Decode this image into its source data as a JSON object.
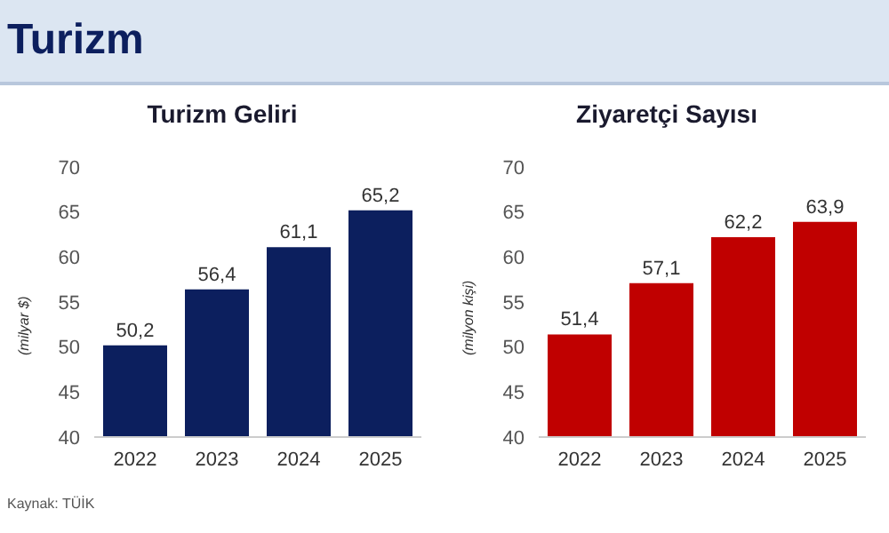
{
  "chart_data": [
    {
      "type": "bar",
      "title": "Turizm Geliri",
      "ylabel": "(milyar $)",
      "categories": [
        "2022",
        "2023",
        "2024",
        "2025"
      ],
      "values": [
        50.2,
        56.4,
        61.1,
        65.2
      ],
      "value_labels": [
        "50,2",
        "56,4",
        "61,1",
        "65,2"
      ],
      "color": "#0c1f5e",
      "ylim": [
        40,
        70
      ],
      "yticks": [
        40,
        45,
        50,
        55,
        60,
        65,
        70
      ],
      "grid": false,
      "annotations": [
        "Turizm",
        "Kaynak: TÜİK"
      ]
    },
    {
      "type": "bar",
      "title": "Ziyaretçi Sayısı",
      "ylabel": "(milyon kişi)",
      "categories": [
        "2022",
        "2023",
        "2024",
        "2025"
      ],
      "values": [
        51.4,
        57.1,
        62.2,
        63.9
      ],
      "value_labels": [
        "51,4",
        "57,1",
        "62,2",
        "63,9"
      ],
      "color": "#c00000",
      "ylim": [
        40,
        70
      ],
      "yticks": [
        40,
        45,
        50,
        55,
        60,
        65,
        70
      ],
      "grid": false
    }
  ]
}
